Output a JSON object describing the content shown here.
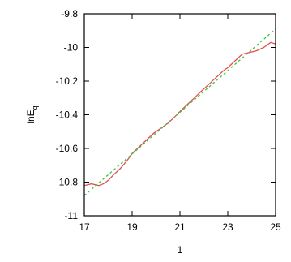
{
  "chart_data": {
    "type": "line",
    "title": "",
    "xlabel": "1",
    "ylabel": "lnE",
    "ylabel_sub": "q",
    "xlim": [
      17,
      25
    ],
    "ylim": [
      -11,
      -9.8
    ],
    "x_ticks": [
      17,
      19,
      21,
      23,
      25
    ],
    "x_tick_labels": [
      "17",
      "19",
      "21",
      "23",
      "25"
    ],
    "y_ticks": [
      -11,
      -10.8,
      -10.6,
      -10.4,
      -10.2,
      -10,
      -9.8
    ],
    "y_tick_labels": [
      "-11",
      "-10.8",
      "-10.6",
      "-10.4",
      "-10.2",
      "-10",
      "-9.8"
    ],
    "grid": false,
    "series": [
      {
        "color": "#e05050",
        "style": "solid",
        "x": [
          17.0,
          17.3,
          17.6,
          17.8,
          18.0,
          18.2,
          18.5,
          18.8,
          19.0,
          19.3,
          19.6,
          19.9,
          20.2,
          20.5,
          20.8,
          21.0,
          21.3,
          21.6,
          21.9,
          22.2,
          22.5,
          22.8,
          23.0,
          23.3,
          23.6,
          23.9,
          24.2,
          24.5,
          24.8,
          25.0
        ],
        "y": [
          -10.82,
          -10.81,
          -10.82,
          -10.81,
          -10.79,
          -10.76,
          -10.72,
          -10.67,
          -10.63,
          -10.59,
          -10.55,
          -10.51,
          -10.48,
          -10.45,
          -10.41,
          -10.38,
          -10.34,
          -10.3,
          -10.26,
          -10.22,
          -10.18,
          -10.14,
          -10.12,
          -10.08,
          -10.04,
          -10.03,
          -10.02,
          -10.0,
          -9.97,
          -9.98
        ]
      },
      {
        "color": "#40c040",
        "style": "dashed",
        "x": [
          17.0,
          25.0
        ],
        "y": [
          -10.88,
          -9.89
        ]
      }
    ]
  }
}
